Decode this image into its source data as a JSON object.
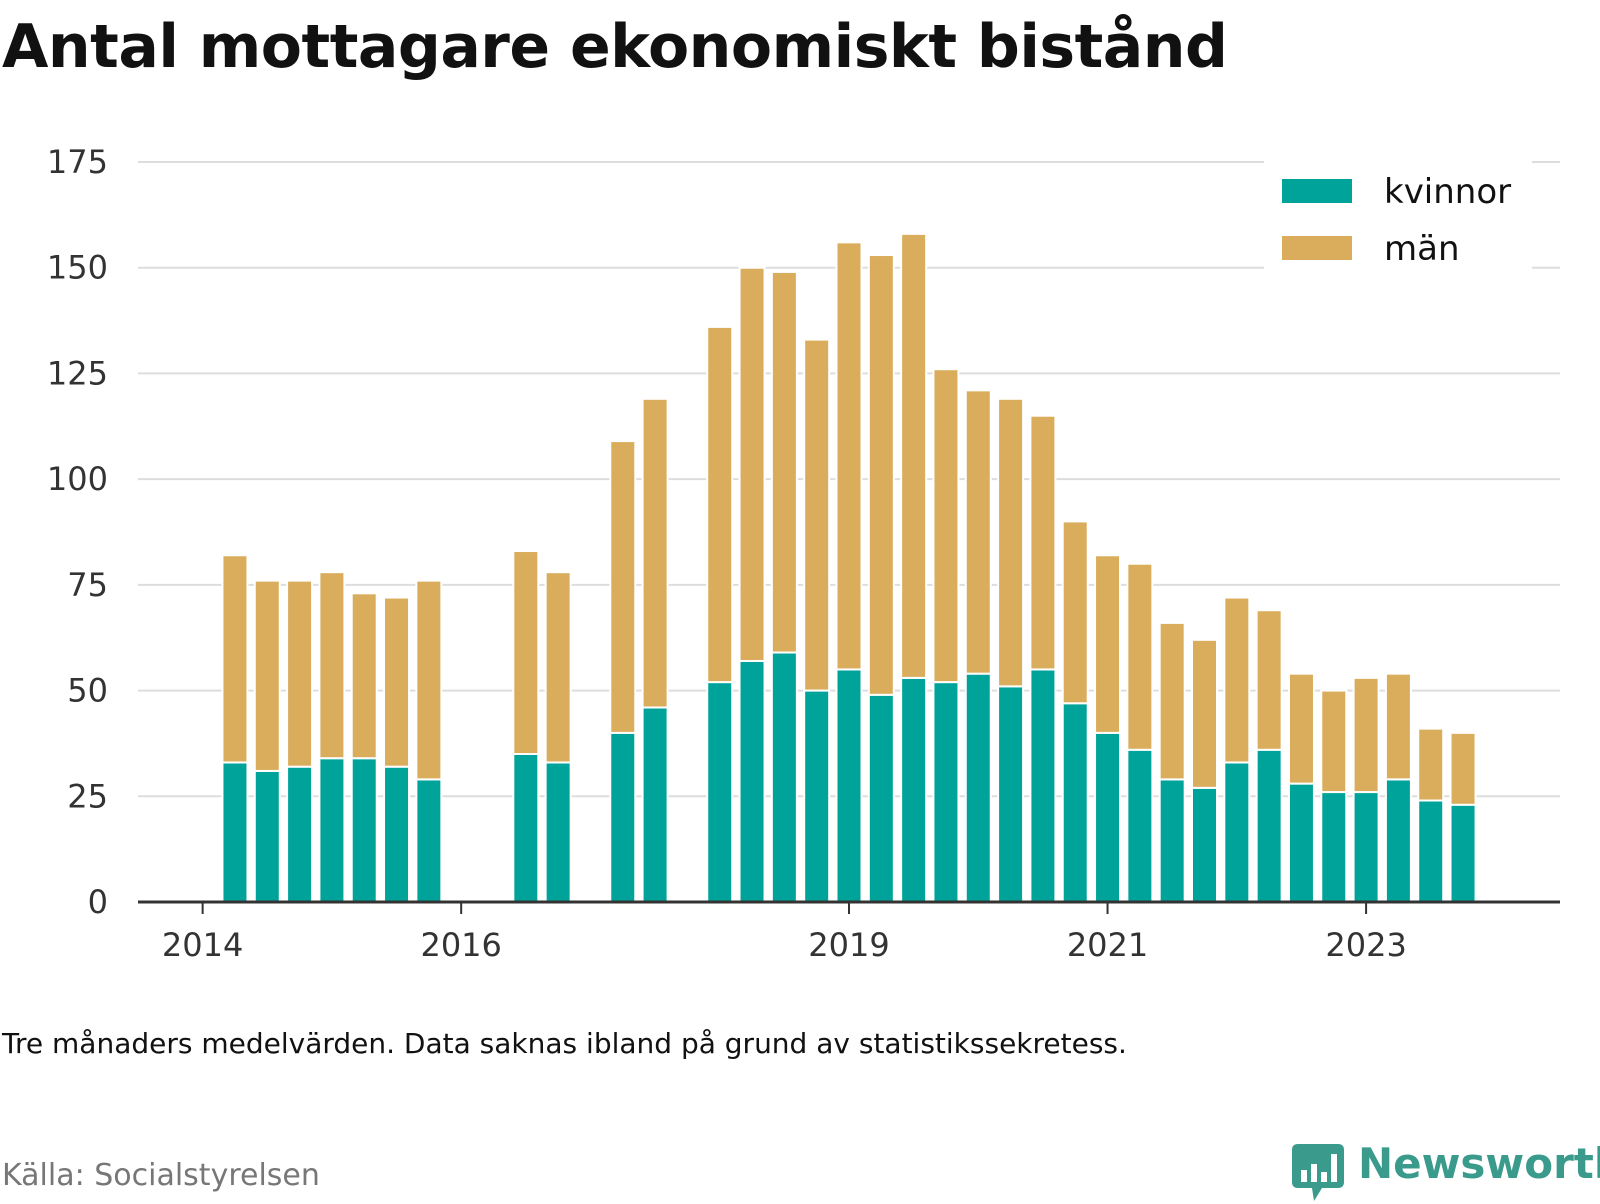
{
  "title": "Antal mottagare ekonomiskt bistånd",
  "note": "Tre månaders medelvärden. Data saknas ibland på grund av statistikssekretess.",
  "source": "Källa: Socialstyrelsen",
  "brand": {
    "name": "Newsworthy",
    "icon": "newsworthy-logo-icon",
    "color": "#3a9a8c"
  },
  "colors": {
    "kvinnor": "#00a39a",
    "man": "#d9ad5b",
    "grid": "#dddddd",
    "axis": "#333333"
  },
  "chart_data": {
    "type": "bar",
    "stacked": true,
    "grid": true,
    "legend_position": "top-right",
    "ylim": [
      0,
      175
    ],
    "y_ticks": [
      "0",
      "25",
      "50",
      "75",
      "100",
      "125",
      "150",
      "175"
    ],
    "x_ticks": [
      "2014",
      "2016",
      "2019",
      "2021",
      "2023"
    ],
    "x_tick_values": [
      2014.0,
      2016.0,
      2019.0,
      2021.0,
      2023.0
    ],
    "xlim": [
      2013.5,
      2024.5
    ],
    "x": [
      2014.25,
      2014.5,
      2014.75,
      2015.0,
      2015.25,
      2015.5,
      2015.75,
      2016.5,
      2016.75,
      2017.25,
      2017.5,
      2018.0,
      2018.25,
      2018.5,
      2018.75,
      2019.0,
      2019.25,
      2019.5,
      2019.75,
      2020.0,
      2020.25,
      2020.5,
      2020.75,
      2021.0,
      2021.25,
      2021.5,
      2021.75,
      2022.0,
      2022.25,
      2022.5,
      2022.75,
      2023.0,
      2023.25,
      2023.5,
      2023.75
    ],
    "series": [
      {
        "name": "kvinnor",
        "color": "#00a39a",
        "values": [
          33,
          31,
          32,
          34,
          34,
          32,
          29,
          35,
          33,
          40,
          46,
          52,
          57,
          59,
          50,
          55,
          49,
          53,
          52,
          54,
          51,
          55,
          47,
          40,
          36,
          29,
          27,
          33,
          36,
          28,
          26,
          26,
          29,
          24,
          23
        ]
      },
      {
        "name": "män",
        "color": "#d9ad5b",
        "values": [
          49,
          45,
          44,
          44,
          39,
          40,
          47,
          48,
          45,
          69,
          73,
          84,
          93,
          90,
          83,
          101,
          104,
          105,
          74,
          67,
          68,
          60,
          43,
          42,
          44,
          37,
          35,
          39,
          33,
          26,
          24,
          27,
          25,
          17,
          17
        ]
      }
    ]
  }
}
